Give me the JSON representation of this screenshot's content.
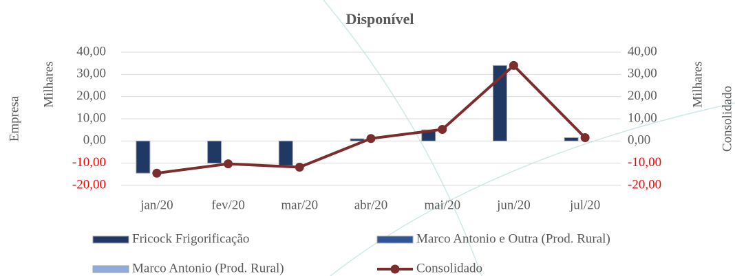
{
  "chart_data": {
    "type": "bar_line",
    "title": "Disponível",
    "y_label": "Empresa",
    "y_unit": "Milhares",
    "y2_label": "Consolidado",
    "y2_unit": "Milhares",
    "categories": [
      "jan/20",
      "fev/20",
      "mar/20",
      "abr/20",
      "mai/20",
      "jun/20",
      "jul/20"
    ],
    "series": [
      {
        "name": "Fricock Frigorificação",
        "color": "#1f3864",
        "values": [
          -14.5,
          -10,
          -11,
          1,
          5,
          34,
          1.5
        ]
      },
      {
        "name": "Marco Antonio e Outra (Prod. Rural)",
        "color": "#2f5597",
        "values": [
          0,
          0,
          0,
          0,
          0,
          0,
          0
        ]
      },
      {
        "name": "Marco Antonio (Prod. Rural)",
        "color": "#8faadc",
        "values": [
          0,
          0,
          0,
          0,
          0,
          0,
          0
        ]
      },
      {
        "name": "Consolidado",
        "type": "line",
        "axis": "y2",
        "color": "#7b2c2c",
        "values": [
          -14.5,
          -10.3,
          -11.8,
          1.1,
          5.2,
          34,
          1.5
        ]
      }
    ],
    "ylim": [
      -20,
      40
    ],
    "yticks": [
      {
        "value": -20,
        "label": "-20,00"
      },
      {
        "value": -10,
        "label": "-10,00"
      },
      {
        "value": 0,
        "label": "0,00"
      },
      {
        "value": 10,
        "label": "10,00"
      },
      {
        "value": 20,
        "label": "20,00"
      },
      {
        "value": 30,
        "label": "30,00"
      },
      {
        "value": 40,
        "label": "40,00"
      }
    ],
    "y2lim": [
      -20,
      40
    ],
    "y2ticks": [
      {
        "value": -20,
        "label": "-20,00"
      },
      {
        "value": -10,
        "label": "-10,00"
      },
      {
        "value": 0,
        "label": "0,00"
      },
      {
        "value": 10,
        "label": "10,00"
      },
      {
        "value": 20,
        "label": "20,00"
      },
      {
        "value": 30,
        "label": "30,00"
      },
      {
        "value": 40,
        "label": "40,00"
      }
    ],
    "negative_tick_color": "#ff0000",
    "grid": true
  }
}
